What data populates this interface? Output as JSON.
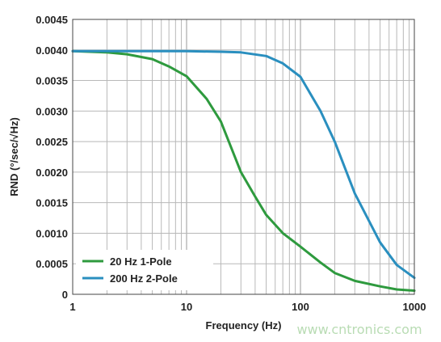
{
  "watermark": "www.cntronics.com",
  "chart_data": {
    "type": "line",
    "xlabel": "Frequency (Hz)",
    "ylabel": "RND (°/sec/√Hz)",
    "xscale": "log",
    "xlim": [
      1,
      1000
    ],
    "ylim": [
      0,
      0.0045
    ],
    "grid": true,
    "legend_position": "bottom-left",
    "x_ticks": [
      "1",
      "10",
      "100",
      "1000"
    ],
    "y_ticks": [
      "0",
      "0.0005",
      "0.0010",
      "0.0015",
      "0.0020",
      "0.0025",
      "0.0030",
      "0.0035",
      "0.0040",
      "0.0045"
    ],
    "series": [
      {
        "name": "20 Hz 1-Pole",
        "color": "#2e9a3e",
        "x": [
          1,
          2,
          3,
          5,
          7,
          10,
          15,
          20,
          30,
          40,
          50,
          70,
          100,
          150,
          200,
          300,
          500,
          700,
          1000
        ],
        "y": [
          0.00398,
          0.00396,
          0.00393,
          0.00385,
          0.00373,
          0.00357,
          0.0032,
          0.00283,
          0.002,
          0.0016,
          0.0013,
          0.001,
          0.00078,
          0.00052,
          0.00035,
          0.00022,
          0.00013,
          8e-05,
          6e-05
        ]
      },
      {
        "name": "200 Hz 2-Pole",
        "color": "#2a8fbf",
        "x": [
          1,
          10,
          20,
          30,
          50,
          70,
          100,
          150,
          200,
          300,
          500,
          700,
          1000
        ],
        "y": [
          0.00398,
          0.00398,
          0.00397,
          0.00396,
          0.0039,
          0.00378,
          0.00356,
          0.003,
          0.0025,
          0.00165,
          0.00085,
          0.00048,
          0.00027
        ]
      }
    ]
  }
}
